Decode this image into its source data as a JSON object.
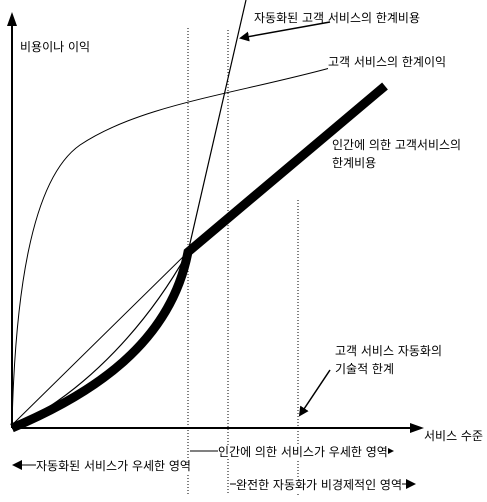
{
  "labels": {
    "y_axis": "비용이나 이익",
    "x_axis": "서비스 수준",
    "automated_marginal_cost": "자동화된 고객 서비스의 한계비용",
    "marginal_benefit": "고객 서비스의 한계이익",
    "human_marginal_cost_line1": "인간에 의한 고객서비스의",
    "human_marginal_cost_line2": "한계비용",
    "tech_limit_line1": "고객 서비스 자동화의",
    "tech_limit_line2": "기술적 한계",
    "region_automated": "자동화된 서비스가 우세한 영역",
    "region_human": "인간에 의한 서비스가 우세한 영역",
    "region_full_automation": "완전한 자동화가 비경제적인 영역"
  }
}
